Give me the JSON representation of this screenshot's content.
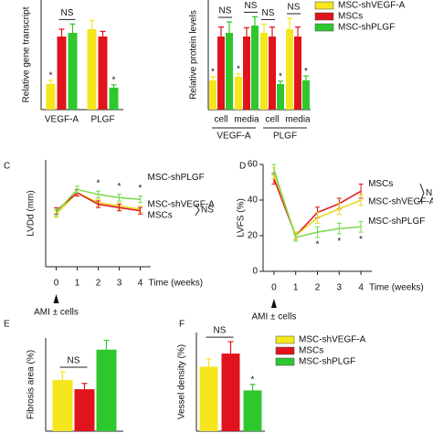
{
  "chart_data": [
    {
      "type": "bar",
      "ylabel": "Relative gene transcript",
      "categories": [
        "VEGF-A",
        "PLGF"
      ],
      "ylim": [
        0,
        1.5
      ],
      "series": [
        {
          "name": "MSC-shVEGF-A",
          "color": "#f5e61e",
          "values": [
            0.35,
            1.1
          ],
          "errors": [
            0.05,
            0.12
          ]
        },
        {
          "name": "MSCs",
          "color": "#e0141c",
          "values": [
            1.0,
            1.0
          ],
          "errors": [
            0.1,
            0.07
          ]
        },
        {
          "name": "MSC-shPLGF",
          "color": "#2ec82e",
          "values": [
            1.05,
            0.3
          ],
          "errors": [
            0.12,
            0.04
          ]
        }
      ],
      "annotations": [
        {
          "text": "NS",
          "category": 0,
          "series": [
            1,
            2
          ]
        },
        {
          "text": "*",
          "category": 0,
          "series": 0
        },
        {
          "text": "*",
          "category": 1,
          "series": 2
        }
      ]
    },
    {
      "type": "bar",
      "ylabel": "Relative protein levels",
      "categories": [
        "cell",
        "media",
        "cell",
        "media"
      ],
      "groups": [
        "VEGF-A",
        "PLGF"
      ],
      "ylim": [
        0,
        1.5
      ],
      "legend": "top-right",
      "series": [
        {
          "name": "MSC-shVEGF-A",
          "color": "#f5e61e",
          "values": [
            0.4,
            0.45,
            1.05,
            1.1
          ],
          "errors": [
            0.05,
            0.04,
            0.12,
            0.15
          ]
        },
        {
          "name": "MSCs",
          "color": "#e0141c",
          "values": [
            1.0,
            1.0,
            1.0,
            1.0
          ],
          "errors": [
            0.13,
            0.12,
            0.13,
            0.13
          ]
        },
        {
          "name": "MSC-shPLGF",
          "color": "#2ec82e",
          "values": [
            1.05,
            1.15,
            0.35,
            0.4
          ],
          "errors": [
            0.15,
            0.12,
            0.04,
            0.06
          ]
        }
      ],
      "annotations": [
        {
          "text": "NS",
          "category": 0,
          "series": [
            1,
            2
          ]
        },
        {
          "text": "NS",
          "category": 1,
          "series": [
            1,
            2
          ]
        },
        {
          "text": "NS",
          "category": 2,
          "series": [
            0,
            1
          ]
        },
        {
          "text": "NS",
          "category": 3,
          "series": [
            0,
            1
          ]
        },
        {
          "text": "*",
          "category": 0,
          "series": 0
        },
        {
          "text": "*",
          "category": 1,
          "series": 0
        },
        {
          "text": "*",
          "category": 2,
          "series": 2
        },
        {
          "text": "*",
          "category": 3,
          "series": 2
        }
      ]
    },
    {
      "type": "line",
      "panel": "C",
      "ylabel": "LVDd (mm)",
      "xlabel": "Time (weeks)",
      "x": [
        0,
        1,
        2,
        3,
        4
      ],
      "xlim": [
        -0.5,
        4.5
      ],
      "xticks": [
        0,
        1,
        2,
        3,
        4
      ],
      "ylim": [
        0,
        6.5
      ],
      "series": [
        {
          "name": "MSC-shVEGF-A",
          "color": "#e8d81a",
          "values": [
            3.2,
            4.5,
            3.9,
            3.7,
            3.5
          ],
          "errors": [
            0.2,
            0.2,
            0.2,
            0.2,
            0.2
          ]
        },
        {
          "name": "MSCs",
          "color": "#e0141c",
          "values": [
            3.4,
            4.5,
            3.8,
            3.6,
            3.4
          ],
          "errors": [
            0.2,
            0.2,
            0.2,
            0.2,
            0.2
          ]
        },
        {
          "name": "MSC-shPLGF",
          "color": "#7ad84a",
          "values": [
            3.3,
            4.7,
            4.4,
            4.2,
            4.1
          ],
          "errors": [
            0.2,
            0.2,
            0.2,
            0.2,
            0.2
          ]
        }
      ],
      "annotations": [
        {
          "text": "*",
          "x": 2,
          "series": 2
        },
        {
          "text": "*",
          "x": 3,
          "series": 2
        },
        {
          "text": "*",
          "x": 4,
          "series": 2
        },
        {
          "text": "NS",
          "series": [
            0,
            1
          ]
        },
        {
          "text": "AMI ± cells",
          "x": 0
        }
      ]
    },
    {
      "type": "line",
      "panel": "D",
      "ylabel": "LVFS (%)",
      "xlabel": "Time (weeks)",
      "x": [
        0,
        1,
        2,
        3,
        4
      ],
      "xlim": [
        -0.5,
        4.5
      ],
      "xticks": [
        0,
        1,
        2,
        3,
        4
      ],
      "ylim": [
        0,
        60
      ],
      "yticks": [
        0,
        20,
        40,
        60
      ],
      "series": [
        {
          "name": "MSCs",
          "color": "#e0141c",
          "values": [
            52,
            20,
            33,
            38,
            45
          ],
          "errors": [
            3,
            2,
            3,
            3,
            4
          ]
        },
        {
          "name": "MSC-shVEGF-A",
          "color": "#e8d81a",
          "values": [
            55,
            20,
            30,
            35,
            40
          ],
          "errors": [
            3,
            2,
            3,
            3,
            3
          ]
        },
        {
          "name": "MSC-shPLGF",
          "color": "#7ad84a",
          "values": [
            57,
            19,
            22,
            24,
            25
          ],
          "errors": [
            3,
            2,
            3,
            3,
            3
          ]
        }
      ],
      "annotations": [
        {
          "text": "*",
          "x": 2,
          "series": 2
        },
        {
          "text": "*",
          "x": 3,
          "series": 2
        },
        {
          "text": "*",
          "x": 4,
          "series": 2
        },
        {
          "text": "NS",
          "series": [
            0,
            1
          ]
        },
        {
          "text": "AMI ± cells",
          "x": 0
        }
      ]
    },
    {
      "type": "bar",
      "panel": "E",
      "ylabel": "Fibrosis area (%)",
      "categories": [
        null
      ],
      "ylim": [
        0,
        40
      ],
      "series": [
        {
          "name": "MSC-shVEGF-A",
          "color": "#f5e61e",
          "values": [
            22
          ],
          "errors": [
            3.5
          ]
        },
        {
          "name": "MSCs",
          "color": "#e0141c",
          "values": [
            18
          ],
          "errors": [
            2.5
          ]
        },
        {
          "name": "MSC-shPLGF",
          "color": "#2ec82e",
          "values": [
            35
          ],
          "errors": [
            4
          ]
        }
      ],
      "annotations": [
        {
          "text": "NS",
          "category": 0,
          "series": [
            0,
            1
          ]
        }
      ]
    },
    {
      "type": "bar",
      "panel": "F",
      "ylabel": "Vessel density (%)",
      "categories": [
        null
      ],
      "ylim": [
        0,
        15
      ],
      "legend": "right",
      "series": [
        {
          "name": "MSC-shVEGF-A",
          "color": "#f5e61e",
          "values": [
            9.8
          ],
          "errors": [
            1.2
          ]
        },
        {
          "name": "MSCs",
          "color": "#e0141c",
          "values": [
            11.8
          ],
          "errors": [
            1.8
          ]
        },
        {
          "name": "MSC-shPLGF",
          "color": "#2ec82e",
          "values": [
            6.2
          ],
          "errors": [
            0.9
          ]
        }
      ],
      "annotations": [
        {
          "text": "NS",
          "category": 0,
          "series": [
            0,
            1
          ]
        },
        {
          "text": "*",
          "category": 0,
          "series": 2
        }
      ]
    }
  ]
}
